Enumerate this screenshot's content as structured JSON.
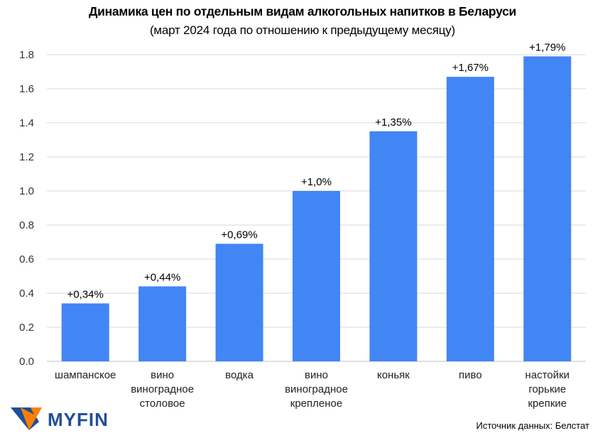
{
  "chart_data": {
    "type": "bar",
    "title": "Динамика цен по отдельным видам алкогольных напитков в Беларуси",
    "subtitle": "(март 2024 года по отношению к предыдущему месяцу)",
    "categories": [
      [
        "шампанское"
      ],
      [
        "вино",
        "виноградное",
        "столовое"
      ],
      [
        "водка"
      ],
      [
        "вино",
        "виноградное",
        "крепленое"
      ],
      [
        "коньяк"
      ],
      [
        "пиво"
      ],
      [
        "настойки",
        "горькие",
        "крепкие"
      ]
    ],
    "values": [
      0.34,
      0.44,
      0.69,
      1.0,
      1.35,
      1.67,
      1.79
    ],
    "data_labels": [
      "+0,34%",
      "+0,44%",
      "+0,69%",
      "+1,0%",
      "+1,35%",
      "+1,67%",
      "+1,79%"
    ],
    "yticks": [
      "0.0",
      "0.2",
      "0.4",
      "0.6",
      "0.8",
      "1.0",
      "1.2",
      "1.4",
      "1.6",
      "1.8"
    ],
    "ylim": [
      0,
      1.8
    ],
    "grid": true,
    "bar_color": "#4285f4"
  },
  "source": "Источник данных: Белстат",
  "logo": {
    "text": "MYFIN",
    "colors": {
      "blue": "#1f4e9c",
      "orange": "#ff7f00"
    }
  }
}
